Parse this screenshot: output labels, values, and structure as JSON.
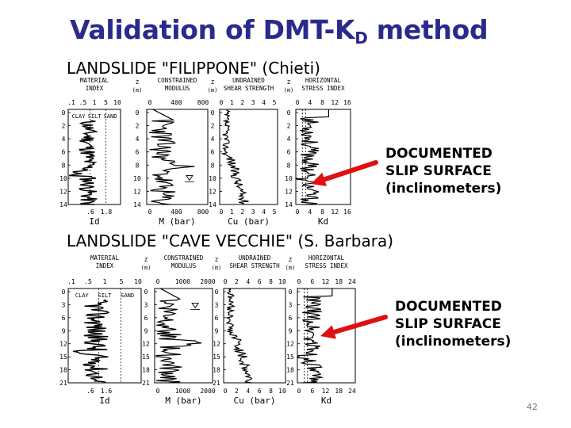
{
  "slide": {
    "title_main": "Validation of DMT-K",
    "title_sub": "D",
    "title_tail": " method",
    "page_number": "42"
  },
  "landslides": [
    {
      "heading": "LANDSLIDE \"FILIPPONE\" (Chieti)",
      "annotation": [
        "DOCUMENTED",
        "SLIP SURFACE",
        "(inclinometers)"
      ],
      "panel_titles": [
        "MATERIAL INDEX",
        "CONSTRAINED MODULUS",
        "UNDRAINED SHEAR STRENGTH",
        "HORIZONTAL STRESS INDEX"
      ],
      "soil_labels": [
        "CLAY",
        "SILT",
        "SAND"
      ],
      "z_label": "Z (m)",
      "depth_ticks": [
        "0",
        "2",
        "4",
        "6",
        "8",
        "10",
        "12",
        "14"
      ],
      "top_ticks": {
        "id": [
          ".1",
          ".5",
          "1",
          "5",
          "10"
        ],
        "m": [
          "0",
          "400",
          "800"
        ],
        "cu": [
          "0",
          "1",
          "2",
          "3",
          "4",
          "5"
        ],
        "kd": [
          "0",
          "4",
          "8",
          "12",
          "16"
        ]
      },
      "bottom_ticks": {
        "id": [
          ".6",
          "1.8"
        ],
        "m": [
          "0",
          "400",
          "800"
        ],
        "cu": [
          "0",
          "1",
          "2",
          "3",
          "4",
          "5"
        ],
        "kd": [
          "0",
          "4",
          "8",
          "12",
          "16"
        ]
      },
      "axis_labels": [
        "Id",
        "M (bar)",
        "Cu (bar)",
        "Kd"
      ]
    },
    {
      "heading": "LANDSLIDE \"CAVE VECCHIE\" (S. Barbara)",
      "annotation": [
        "DOCUMENTED",
        "SLIP SURFACE",
        "(inclinometers)"
      ],
      "panel_titles": [
        "MATERIAL INDEX",
        "CONSTRAINED MODULUS",
        "UNDRAINED SHEAR STRENGTH",
        "HORIZONTAL STRESS INDEX"
      ],
      "soil_labels": [
        "CLAY",
        "SILT",
        "SAND"
      ],
      "z_label": "Z (m)",
      "depth_ticks": [
        "0",
        "3",
        "6",
        "9",
        "12",
        "15",
        "18",
        "21"
      ],
      "top_ticks": {
        "id": [
          ".1",
          ".5",
          "1",
          "5",
          "10"
        ],
        "m": [
          "0",
          "1000",
          "2000"
        ],
        "cu": [
          "0",
          "2",
          "4",
          "6",
          "8",
          "10"
        ],
        "kd": [
          "0",
          "6",
          "12",
          "18",
          "24"
        ]
      },
      "bottom_ticks": {
        "id": [
          ".6",
          "1.6"
        ],
        "m": [
          "0",
          "1000",
          "2000"
        ],
        "cu": [
          "0",
          "2",
          "4",
          "6",
          "8",
          "10"
        ],
        "kd": [
          "0",
          "6",
          "12",
          "18",
          "24"
        ]
      },
      "axis_labels": [
        "Id",
        "M (bar)",
        "Cu (bar)",
        "Kd"
      ]
    }
  ],
  "colors": {
    "title": "#2a2a8c",
    "arrow": "#e01010"
  }
}
